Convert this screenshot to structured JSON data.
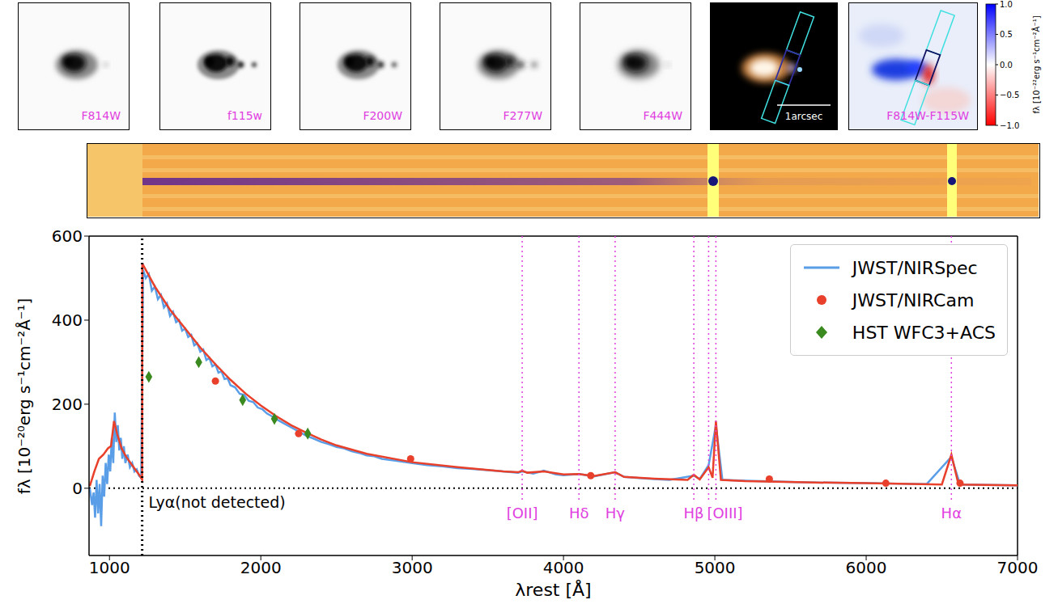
{
  "panels": [
    "F814W",
    "f115w",
    "F200W",
    "F277W",
    "F444W"
  ],
  "color_image": {
    "scale_bar": "1arcsec"
  },
  "difference_image": {
    "label": "F814W-F115W",
    "colorbar": {
      "label": "fλ [10⁻²²erg s⁻¹cm⁻²Å⁻¹]",
      "range": [
        -1,
        1
      ],
      "ticks": [
        {
          "value": 1,
          "label": "1.0"
        },
        {
          "value": 0.5,
          "label": "0.5"
        },
        {
          "value": 0,
          "label": "0.0"
        },
        {
          "value": -0.5,
          "label": "−0.5"
        },
        {
          "value": -1,
          "label": "−1.0"
        }
      ]
    }
  },
  "chart_data": {
    "type": "line",
    "x_label": "λrest [Å]",
    "y_label": "fλ [10⁻²⁰erg s⁻¹cm⁻²Å⁻¹]",
    "xlim": [
      865,
      7000
    ],
    "xticks": [
      1000,
      2000,
      3000,
      4000,
      5000,
      6000,
      7000
    ],
    "ylim": [
      -160,
      600
    ],
    "yticks": [
      0,
      200,
      400,
      600
    ],
    "legend": "upper right",
    "series": [
      {
        "name": "JWST/NIRSpec",
        "type": "line",
        "color": "#5b9ee8",
        "x": [
          870,
          885,
          895,
          905,
          915,
          925,
          935,
          945,
          955,
          965,
          975,
          985,
          995,
          1005,
          1015,
          1025,
          1035,
          1045,
          1055,
          1065,
          1075,
          1085,
          1095,
          1105,
          1120,
          1135,
          1150,
          1165,
          1180,
          1195,
          1210,
          1222,
          1240,
          1260,
          1280,
          1300,
          1320,
          1340,
          1360,
          1380,
          1400,
          1420,
          1440,
          1460,
          1480,
          1500,
          1520,
          1540,
          1560,
          1580,
          1600,
          1620,
          1640,
          1660,
          1680,
          1700,
          1720,
          1740,
          1760,
          1780,
          1800,
          1830,
          1860,
          1890,
          1920,
          1950,
          1980,
          2010,
          2040,
          2070,
          2100,
          2150,
          2200,
          2250,
          2300,
          2350,
          2400,
          2450,
          2500,
          2550,
          2600,
          2650,
          2700,
          2750,
          2800,
          2900,
          3000,
          3100,
          3200,
          3300,
          3400,
          3500,
          3600,
          3700,
          3727,
          3800,
          3870,
          3950,
          4000,
          4102,
          4200,
          4341,
          4400,
          4500,
          4600,
          4700,
          4861,
          4900,
          4959,
          5007,
          5050,
          5200,
          5400,
          5600,
          5800,
          6000,
          6200,
          6400,
          6563,
          6620,
          6800,
          7000
        ],
        "values": [
          0,
          -40,
          -10,
          -70,
          20,
          -60,
          10,
          -90,
          30,
          -20,
          60,
          10,
          80,
          40,
          120,
          60,
          180,
          110,
          150,
          90,
          120,
          70,
          100,
          60,
          80,
          50,
          60,
          40,
          45,
          30,
          25,
          520,
          500,
          510,
          470,
          480,
          450,
          460,
          430,
          440,
          410,
          420,
          395,
          400,
          375,
          380,
          360,
          365,
          340,
          345,
          325,
          330,
          305,
          310,
          290,
          295,
          275,
          278,
          260,
          262,
          245,
          240,
          225,
          222,
          208,
          205,
          192,
          188,
          178,
          172,
          165,
          155,
          145,
          135,
          125,
          118,
          110,
          105,
          98,
          95,
          88,
          84,
          78,
          76,
          70,
          65,
          60,
          55,
          52,
          48,
          46,
          43,
          40,
          37,
          40,
          35,
          42,
          33,
          31,
          34,
          28,
          38,
          27,
          24,
          22,
          20,
          30,
          22,
          55,
          150,
          20,
          18,
          16,
          14,
          13,
          12,
          11,
          10,
          75,
          9,
          8,
          7
        ]
      },
      {
        "type": "line",
        "color": "#e8402a",
        "x": [
          870,
          900,
          930,
          960,
          990,
          1010,
          1030,
          1050,
          1080,
          1110,
          1140,
          1170,
          1200,
          1216,
          1217,
          1300,
          1400,
          1500,
          1600,
          1700,
          1800,
          1900,
          2000,
          2100,
          2200,
          2300,
          2400,
          2500,
          2700,
          3000,
          3300,
          3600,
          3700,
          3727,
          3760,
          3870,
          4000,
          4102,
          4200,
          4341,
          4400,
          4600,
          4820,
          4861,
          4900,
          4959,
          4985,
          5007,
          5040,
          5200,
          5600,
          6000,
          6500,
          6563,
          6610,
          7000
        ],
        "values": [
          5,
          40,
          70,
          80,
          95,
          100,
          160,
          130,
          95,
          75,
          60,
          45,
          30,
          20,
          535,
          480,
          425,
          380,
          335,
          295,
          258,
          225,
          197,
          172,
          150,
          132,
          116,
          102,
          82,
          62,
          50,
          40,
          38,
          42,
          37,
          40,
          33,
          34,
          29,
          38,
          27,
          23,
          20,
          32,
          21,
          50,
          25,
          160,
          20,
          17,
          14,
          12,
          9,
          80,
          9,
          7
        ]
      },
      {
        "name": "JWST/NIRCam",
        "type": "scatter",
        "marker": "circle",
        "color": "#e8402a",
        "x": [
          1700,
          2250,
          2990,
          4180,
          5360,
          6130,
          6620
        ],
        "values": [
          255,
          130,
          70,
          30,
          22,
          12,
          12
        ]
      },
      {
        "name": "HST WFC3+ACS",
        "type": "scatter",
        "marker": "diamond",
        "color": "#3a8a1f",
        "x": [
          1260,
          1590,
          1880,
          2090,
          2310
        ],
        "values": [
          265,
          300,
          210,
          165,
          130
        ]
      }
    ],
    "hline": {
      "y": 0,
      "color": "#000000",
      "line_style": "dotted"
    },
    "lines": [
      {
        "label": "Lyα(not detected)",
        "x": [
          1216
        ],
        "color": "#000000",
        "line_style": "dotted"
      },
      {
        "label": "[OII]",
        "x": [
          3727
        ],
        "color": "#e040e0",
        "line_style": "dotted"
      },
      {
        "label": "Hδ",
        "x": [
          4102
        ],
        "color": "#e040e0",
        "line_style": "dotted"
      },
      {
        "label": "Hγ",
        "x": [
          4341
        ],
        "color": "#e040e0",
        "line_style": "dotted"
      },
      {
        "label": "Hβ",
        "x": [
          4861
        ],
        "color": "#e040e0",
        "line_style": "dotted"
      },
      {
        "label": "[OIII]",
        "x": [
          4959,
          5007
        ],
        "color": "#e040e0",
        "line_style": "dotted"
      },
      {
        "label": "Hα",
        "x": [
          6563
        ],
        "color": "#e040e0",
        "line_style": "dotted"
      }
    ]
  }
}
